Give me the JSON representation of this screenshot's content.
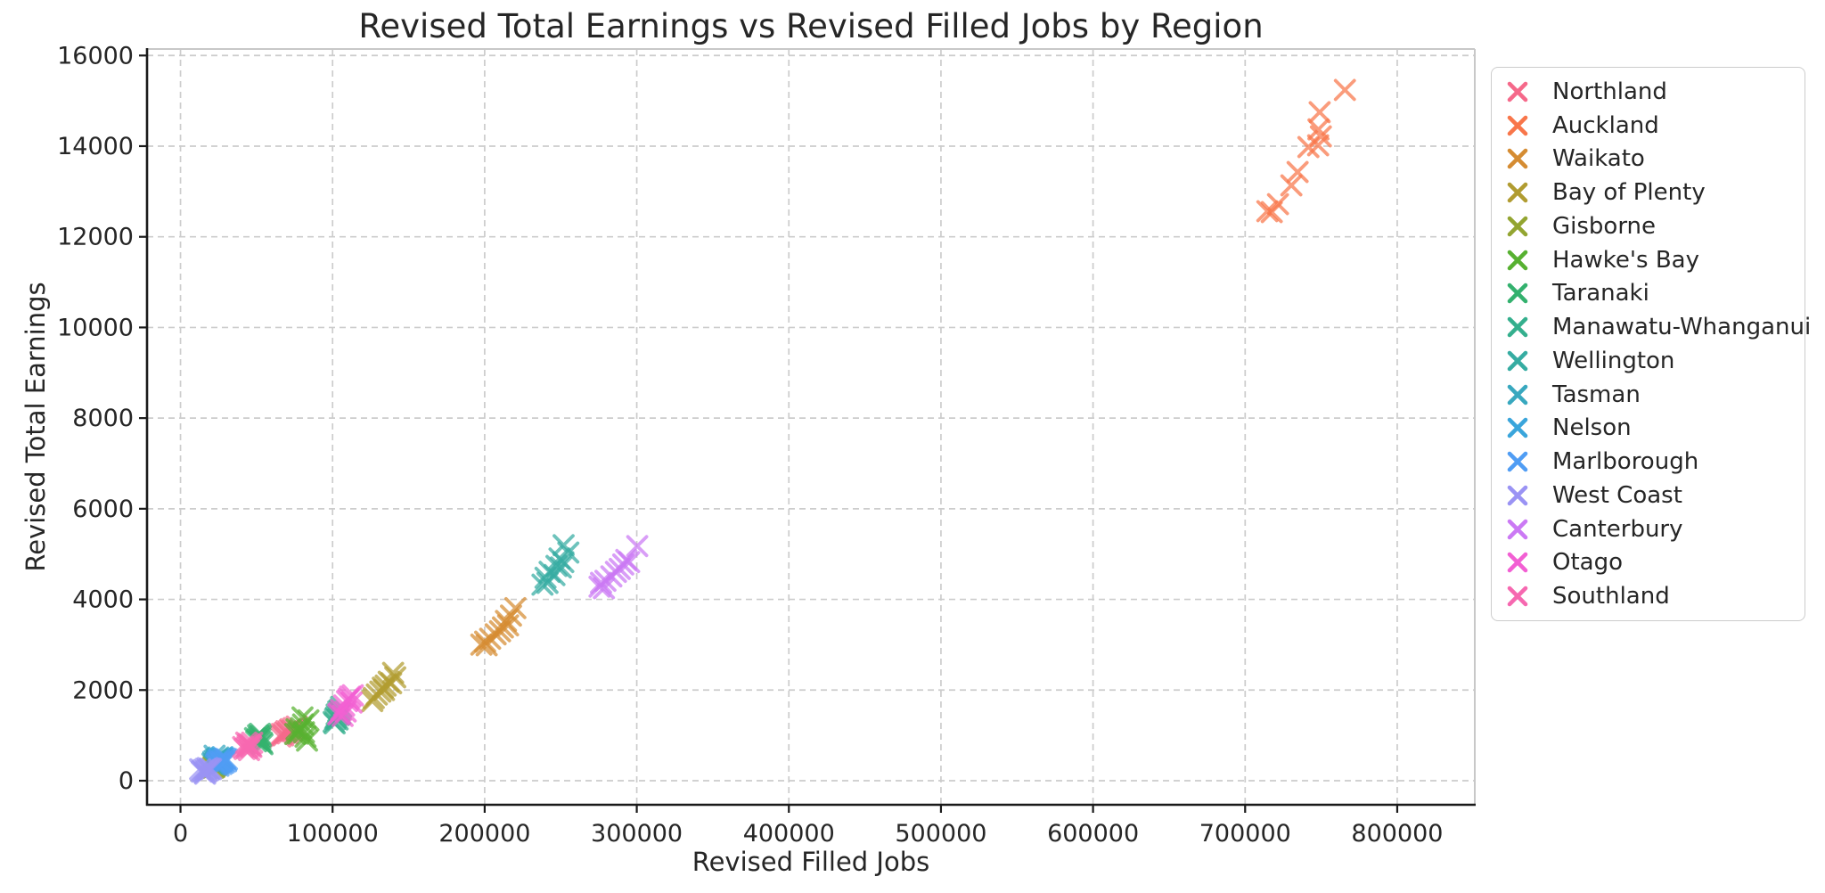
{
  "chart_data": {
    "type": "scatter",
    "title": "Revised Total Earnings vs Revised Filled Jobs by Region",
    "xlabel": "Revised Filled Jobs",
    "ylabel": "Revised Total Earnings",
    "marker": "x",
    "grid": true,
    "legend_position": "outside-right",
    "xlim": [
      -22000,
      851000
    ],
    "ylim": [
      -531,
      16143
    ],
    "xticks": [
      0,
      100000,
      200000,
      300000,
      400000,
      500000,
      600000,
      700000,
      800000
    ],
    "yticks": [
      0,
      2000,
      4000,
      6000,
      8000,
      10000,
      12000,
      14000,
      16000
    ],
    "colors": {
      "grid": "#cccccc",
      "spine_dark": "#1a1a1a",
      "spine_light": "#c8c8c8",
      "text": "#262626",
      "background": "#ffffff"
    },
    "series": [
      {
        "name": "Northland",
        "color": "#f5698a",
        "points": [
          [
            65600,
            975
          ],
          [
            66600,
            1030
          ],
          [
            67500,
            1000
          ],
          [
            68500,
            1055
          ],
          [
            69500,
            1090
          ],
          [
            70400,
            1045
          ],
          [
            71500,
            1105
          ],
          [
            72400,
            1135
          ],
          [
            73300,
            1095
          ],
          [
            74400,
            1160
          ],
          [
            76400,
            1195
          ]
        ]
      },
      {
        "name": "Auckland",
        "color": "#f8764a",
        "points": [
          [
            714600,
            12565
          ],
          [
            717500,
            12545
          ],
          [
            721600,
            12720
          ],
          [
            730400,
            13135
          ],
          [
            734500,
            13430
          ],
          [
            741600,
            13980
          ],
          [
            748000,
            14020
          ],
          [
            749800,
            14215
          ],
          [
            748200,
            14370
          ],
          [
            749000,
            14750
          ],
          [
            765600,
            15240
          ]
        ]
      },
      {
        "name": "Waikato",
        "color": "#d58c32",
        "points": [
          [
            197800,
            3002
          ],
          [
            200300,
            3067
          ],
          [
            201300,
            2988
          ],
          [
            203600,
            3132
          ],
          [
            207200,
            3230
          ],
          [
            210100,
            3297
          ],
          [
            212000,
            3381
          ],
          [
            214000,
            3525
          ],
          [
            215400,
            3427
          ],
          [
            217300,
            3643
          ],
          [
            220200,
            3808
          ]
        ]
      },
      {
        "name": "Bay of Plenty",
        "color": "#b19c31",
        "points": [
          [
            126100,
            1756
          ],
          [
            127100,
            1823
          ],
          [
            129100,
            1901
          ],
          [
            131400,
            1966
          ],
          [
            133000,
            2051
          ],
          [
            133800,
            2000
          ],
          [
            134900,
            2098
          ],
          [
            136900,
            2183
          ],
          [
            138500,
            2150
          ],
          [
            139800,
            2379
          ],
          [
            141200,
            2281
          ]
        ]
      },
      {
        "name": "Gisborne",
        "color": "#93a531",
        "points": [
          [
            21500,
            285
          ],
          [
            21900,
            320
          ],
          [
            22300,
            300
          ],
          [
            22600,
            345
          ],
          [
            22900,
            330
          ],
          [
            23200,
            365
          ],
          [
            23500,
            350
          ],
          [
            23900,
            385
          ],
          [
            24200,
            370
          ],
          [
            24500,
            405
          ],
          [
            24100,
            420
          ]
        ]
      },
      {
        "name": "Hawke's Bay",
        "color": "#57b131",
        "points": [
          [
            75400,
            1030
          ],
          [
            76300,
            1134
          ],
          [
            77300,
            1040
          ],
          [
            78300,
            1100
          ],
          [
            79200,
            1160
          ],
          [
            80200,
            1396
          ],
          [
            80600,
            1240
          ],
          [
            81200,
            1068
          ],
          [
            82200,
            970
          ],
          [
            83200,
            885
          ],
          [
            84100,
            1331
          ]
        ]
      },
      {
        "name": "Taranaki",
        "color": "#33b16e",
        "points": [
          [
            49000,
            938
          ],
          [
            49800,
            870
          ],
          [
            50500,
            905
          ],
          [
            51000,
            1003
          ],
          [
            51600,
            950
          ],
          [
            52000,
            871
          ],
          [
            52200,
            1035
          ],
          [
            52500,
            920
          ],
          [
            52900,
            985
          ],
          [
            53400,
            840
          ],
          [
            53900,
            806
          ]
        ]
      },
      {
        "name": "Manawatu-Whanganui",
        "color": "#34af8d",
        "points": [
          [
            100700,
            1298
          ],
          [
            101400,
            1265
          ],
          [
            101700,
            1363
          ],
          [
            102300,
            1396
          ],
          [
            102700,
            1461
          ],
          [
            103300,
            1350
          ],
          [
            103700,
            1527
          ],
          [
            104200,
            1450
          ],
          [
            104700,
            1560
          ],
          [
            105100,
            1480
          ],
          [
            105600,
            1626
          ]
        ]
      },
      {
        "name": "Wellington",
        "color": "#36aca2",
        "points": [
          [
            238000,
            4325
          ],
          [
            240000,
            4477
          ],
          [
            241300,
            4365
          ],
          [
            242700,
            4607
          ],
          [
            245900,
            4536
          ],
          [
            247200,
            4738
          ],
          [
            249200,
            4902
          ],
          [
            250100,
            4705
          ],
          [
            251700,
            4823
          ],
          [
            251900,
            5196
          ],
          [
            255000,
            5033
          ]
        ]
      },
      {
        "name": "Tasman",
        "color": "#38a8bf",
        "points": [
          [
            21000,
            380
          ],
          [
            21600,
            420
          ],
          [
            22100,
            360
          ],
          [
            22400,
            550
          ],
          [
            22800,
            450
          ],
          [
            23200,
            400
          ],
          [
            23600,
            470
          ],
          [
            24000,
            430
          ],
          [
            24400,
            490
          ],
          [
            24700,
            460
          ],
          [
            25000,
            510
          ]
        ]
      },
      {
        "name": "Nelson",
        "color": "#3aa5db",
        "points": [
          [
            24000,
            400
          ],
          [
            24500,
            440
          ],
          [
            25000,
            385
          ],
          [
            25400,
            460
          ],
          [
            25800,
            420
          ],
          [
            26200,
            480
          ],
          [
            26600,
            445
          ],
          [
            27000,
            500
          ],
          [
            27400,
            465
          ],
          [
            27700,
            520
          ],
          [
            28000,
            490
          ]
        ]
      },
      {
        "name": "Marlborough",
        "color": "#509df4",
        "points": [
          [
            23400,
            350
          ],
          [
            24200,
            390
          ],
          [
            25000,
            330
          ],
          [
            25400,
            452
          ],
          [
            26200,
            410
          ],
          [
            27000,
            370
          ],
          [
            27700,
            440
          ],
          [
            28400,
            400
          ],
          [
            29300,
            486
          ],
          [
            30000,
            430
          ],
          [
            30500,
            470
          ]
        ]
      },
      {
        "name": "West Coast",
        "color": "#9a93f4",
        "points": [
          [
            12900,
            250
          ],
          [
            14000,
            200
          ],
          [
            15000,
            230
          ],
          [
            15800,
            180
          ],
          [
            16200,
            155
          ],
          [
            16500,
            260
          ],
          [
            17200,
            210
          ],
          [
            17800,
            281
          ],
          [
            18500,
            235
          ],
          [
            19200,
            265
          ],
          [
            20100,
            256
          ]
        ]
      },
      {
        "name": "Canterbury",
        "color": "#cb79f4",
        "points": [
          [
            275500,
            4280
          ],
          [
            276500,
            4365
          ],
          [
            278400,
            4246
          ],
          [
            279400,
            4410
          ],
          [
            283300,
            4508
          ],
          [
            286300,
            4607
          ],
          [
            288800,
            4672
          ],
          [
            291100,
            4770
          ],
          [
            293100,
            4870
          ],
          [
            295000,
            4823
          ],
          [
            300300,
            5176
          ]
        ]
      },
      {
        "name": "Otago",
        "color": "#f25fd3",
        "points": [
          [
            103700,
            1461
          ],
          [
            104500,
            1490
          ],
          [
            105600,
            1559
          ],
          [
            106600,
            1429
          ],
          [
            107600,
            1658
          ],
          [
            108600,
            1527
          ],
          [
            109500,
            1756
          ],
          [
            110500,
            1800
          ],
          [
            111500,
            1854
          ],
          [
            112500,
            1724
          ],
          [
            113300,
            1885
          ]
        ]
      },
      {
        "name": "Southland",
        "color": "#f668b0",
        "points": [
          [
            41200,
            741
          ],
          [
            42200,
            700
          ],
          [
            43200,
            839
          ],
          [
            43700,
            720
          ],
          [
            44100,
            760
          ],
          [
            44600,
            810
          ],
          [
            45100,
            674
          ],
          [
            45600,
            790
          ],
          [
            46100,
            773
          ],
          [
            46600,
            745
          ],
          [
            47100,
            838
          ]
        ]
      }
    ]
  }
}
